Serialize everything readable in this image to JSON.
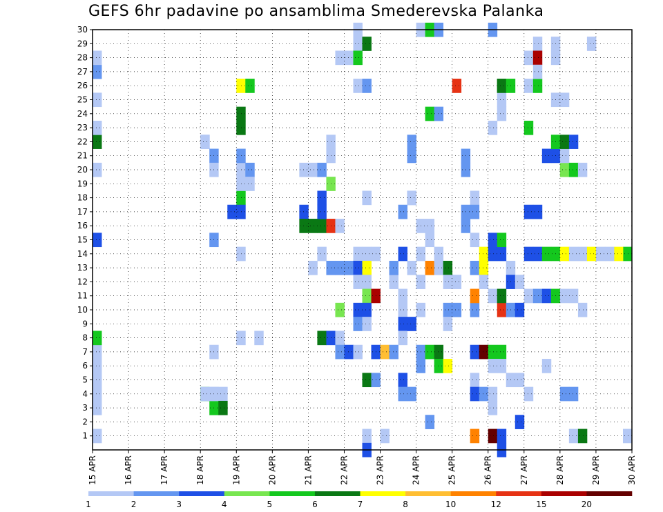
{
  "chart_data": {
    "type": "heatmap",
    "title": "GEFS 6hr padavine po ansamblima Smederevska Palanka",
    "x_tick_labels": [
      "15 APR",
      "16 APR",
      "17 APR",
      "18 APR",
      "19 APR",
      "20 APR",
      "21 APR",
      "22 APR",
      "23 APR",
      "24 APR",
      "25 APR",
      "26 APR",
      "27 APR",
      "28 APR",
      "29 APR",
      "30 APR"
    ],
    "y_tick_labels": [
      "1",
      "2",
      "3",
      "4",
      "5",
      "6",
      "7",
      "8",
      "9",
      "10",
      "11",
      "12",
      "13",
      "14",
      "15",
      "16",
      "17",
      "18",
      "19",
      "20",
      "21",
      "22",
      "23",
      "24",
      "25",
      "26",
      "27",
      "28",
      "29",
      "30"
    ],
    "x_steps_per_day": 4,
    "x_range_steps": [
      0,
      60
    ],
    "y_range": [
      0,
      30
    ],
    "grid": true,
    "legend_placement": "bottom",
    "colorbar": {
      "labels": [
        "1",
        "2",
        "3",
        "4",
        "5",
        "6",
        "7",
        "8",
        "10",
        "12",
        "15",
        "20"
      ],
      "colors": [
        "#b4c8f5",
        "#6496f0",
        "#1e50e6",
        "#78e650",
        "#14c81e",
        "#0a7814",
        "#ffff00",
        "#ffbe32",
        "#ff8200",
        "#e63214",
        "#aa0000",
        "#640000"
      ]
    },
    "cells": [
      [
        0,
        1,
        0
      ],
      [
        0,
        3,
        0
      ],
      [
        0,
        4,
        0
      ],
      [
        0,
        5,
        0
      ],
      [
        0,
        6,
        0
      ],
      [
        0,
        7,
        0
      ],
      [
        0,
        8,
        4
      ],
      [
        0,
        15,
        2
      ],
      [
        0,
        20,
        0
      ],
      [
        0,
        22,
        5
      ],
      [
        0,
        23,
        0
      ],
      [
        0,
        25,
        0
      ],
      [
        0,
        27,
        1
      ],
      [
        0,
        28,
        0
      ],
      [
        12,
        4,
        4
      ],
      [
        12,
        22,
        0
      ],
      [
        12,
        4,
        0
      ],
      [
        13,
        4,
        0
      ],
      [
        13,
        3,
        4
      ],
      [
        13,
        4,
        0
      ],
      [
        12,
        22,
        0
      ],
      [
        13,
        7,
        0
      ],
      [
        13,
        21,
        1
      ],
      [
        13,
        20,
        0
      ],
      [
        13,
        15,
        1
      ],
      [
        14,
        4,
        0
      ],
      [
        14,
        3,
        5
      ],
      [
        15,
        17,
        2
      ],
      [
        16,
        18,
        4
      ],
      [
        16,
        17,
        2
      ],
      [
        16,
        20,
        0
      ],
      [
        16,
        19,
        0
      ],
      [
        16,
        21,
        1
      ],
      [
        16,
        23,
        5
      ],
      [
        16,
        24,
        5
      ],
      [
        16,
        26,
        6
      ],
      [
        16,
        14,
        0
      ],
      [
        16,
        8,
        0
      ],
      [
        17,
        26,
        4
      ],
      [
        17,
        20,
        1
      ],
      [
        17,
        19,
        0
      ],
      [
        18,
        8,
        0
      ],
      [
        23,
        20,
        0
      ],
      [
        23,
        17,
        2
      ],
      [
        23,
        16,
        5
      ],
      [
        24,
        20,
        0
      ],
      [
        24,
        16,
        5
      ],
      [
        24,
        13,
        0
      ],
      [
        25,
        20,
        1
      ],
      [
        25,
        18,
        2
      ],
      [
        25,
        16,
        5
      ],
      [
        25,
        17,
        2
      ],
      [
        25,
        14,
        0
      ],
      [
        25,
        8,
        5
      ],
      [
        26,
        19,
        3
      ],
      [
        26,
        16,
        9
      ],
      [
        26,
        13,
        1
      ],
      [
        26,
        8,
        2
      ],
      [
        26,
        21,
        0
      ],
      [
        26,
        22,
        0
      ],
      [
        27,
        16,
        0
      ],
      [
        27,
        13,
        1
      ],
      [
        27,
        10,
        3
      ],
      [
        27,
        8,
        0
      ],
      [
        27,
        7,
        1
      ],
      [
        27,
        28,
        0
      ],
      [
        28,
        13,
        1
      ],
      [
        28,
        28,
        0
      ],
      [
        28,
        7,
        2
      ],
      [
        29,
        14,
        0
      ],
      [
        29,
        13,
        2
      ],
      [
        29,
        12,
        0
      ],
      [
        29,
        10,
        2
      ],
      [
        29,
        9,
        1
      ],
      [
        29,
        7,
        0
      ],
      [
        29,
        30,
        0
      ],
      [
        29,
        26,
        0
      ],
      [
        29,
        29,
        0
      ],
      [
        29,
        28,
        4
      ],
      [
        30,
        29,
        5
      ],
      [
        30,
        14,
        0
      ],
      [
        30,
        13,
        6
      ],
      [
        30,
        12,
        0
      ],
      [
        30,
        11,
        3
      ],
      [
        30,
        10,
        2
      ],
      [
        30,
        9,
        0
      ],
      [
        30,
        5,
        5
      ],
      [
        30,
        1,
        0
      ],
      [
        30,
        0,
        2
      ],
      [
        30,
        26,
        1
      ],
      [
        30,
        18,
        0
      ],
      [
        31,
        14,
        0
      ],
      [
        31,
        11,
        10
      ],
      [
        31,
        5,
        1
      ],
      [
        31,
        7,
        2
      ],
      [
        32,
        7,
        7
      ],
      [
        32,
        1,
        0
      ],
      [
        33,
        7,
        1
      ],
      [
        33,
        12,
        0
      ],
      [
        33,
        13,
        1
      ],
      [
        34,
        17,
        1
      ],
      [
        34,
        14,
        2
      ],
      [
        34,
        10,
        0
      ],
      [
        34,
        9,
        2
      ],
      [
        34,
        11,
        0
      ],
      [
        34,
        8,
        0
      ],
      [
        34,
        5,
        2
      ],
      [
        34,
        4,
        1
      ],
      [
        35,
        21,
        1
      ],
      [
        35,
        22,
        1
      ],
      [
        35,
        18,
        1
      ],
      [
        35,
        13,
        0
      ],
      [
        35,
        9,
        2
      ],
      [
        35,
        4,
        1
      ],
      [
        35,
        18,
        0
      ],
      [
        36,
        14,
        0
      ],
      [
        36,
        12,
        0
      ],
      [
        36,
        10,
        0
      ],
      [
        36,
        7,
        1
      ],
      [
        36,
        6,
        1
      ],
      [
        36,
        16,
        0
      ],
      [
        36,
        30,
        0
      ],
      [
        37,
        13,
        8
      ],
      [
        37,
        7,
        4
      ],
      [
        37,
        24,
        4
      ],
      [
        37,
        30,
        4
      ],
      [
        37,
        2,
        1
      ],
      [
        37,
        15,
        0
      ],
      [
        37,
        16,
        0
      ],
      [
        38,
        14,
        0
      ],
      [
        38,
        13,
        0
      ],
      [
        38,
        7,
        5
      ],
      [
        38,
        6,
        4
      ],
      [
        38,
        30,
        1
      ],
      [
        38,
        24,
        1
      ],
      [
        39,
        13,
        5
      ],
      [
        39,
        12,
        0
      ],
      [
        39,
        10,
        1
      ],
      [
        39,
        6,
        6
      ],
      [
        39,
        9,
        0
      ],
      [
        40,
        12,
        0
      ],
      [
        40,
        10,
        1
      ],
      [
        40,
        26,
        9
      ],
      [
        41,
        17,
        1
      ],
      [
        41,
        16,
        1
      ],
      [
        41,
        20,
        1
      ],
      [
        41,
        21,
        1
      ],
      [
        42,
        13,
        1
      ],
      [
        42,
        10,
        1
      ],
      [
        42,
        18,
        0
      ],
      [
        42,
        17,
        1
      ],
      [
        42,
        15,
        0
      ],
      [
        42,
        11,
        8
      ],
      [
        42,
        7,
        2
      ],
      [
        42,
        5,
        0
      ],
      [
        42,
        4,
        2
      ],
      [
        42,
        1,
        8
      ],
      [
        43,
        13,
        6
      ],
      [
        43,
        14,
        6
      ],
      [
        43,
        4,
        1
      ],
      [
        43,
        7,
        11
      ],
      [
        43,
        12,
        0
      ],
      [
        44,
        14,
        2
      ],
      [
        44,
        11,
        0
      ],
      [
        44,
        7,
        4
      ],
      [
        44,
        6,
        0
      ],
      [
        44,
        4,
        0
      ],
      [
        44,
        3,
        0
      ],
      [
        44,
        1,
        11
      ],
      [
        44,
        23,
        0
      ],
      [
        44,
        30,
        1
      ],
      [
        44,
        15,
        2
      ],
      [
        45,
        14,
        2
      ],
      [
        45,
        11,
        0
      ],
      [
        45,
        7,
        4
      ],
      [
        45,
        26,
        5
      ],
      [
        45,
        0,
        2
      ],
      [
        45,
        1,
        2
      ],
      [
        45,
        15,
        4
      ],
      [
        45,
        24,
        0
      ],
      [
        45,
        25,
        0
      ],
      [
        45,
        26,
        5
      ],
      [
        45,
        6,
        0
      ],
      [
        45,
        10,
        9
      ],
      [
        45,
        11,
        5
      ],
      [
        46,
        10,
        1
      ],
      [
        46,
        13,
        0
      ],
      [
        46,
        12,
        2
      ],
      [
        46,
        5,
        0
      ],
      [
        46,
        26,
        4
      ],
      [
        47,
        12,
        0
      ],
      [
        47,
        10,
        2
      ],
      [
        47,
        5,
        0
      ],
      [
        47,
        2,
        2
      ],
      [
        48,
        11,
        0
      ],
      [
        48,
        4,
        0
      ],
      [
        48,
        23,
        4
      ],
      [
        48,
        26,
        0
      ],
      [
        48,
        28,
        0
      ],
      [
        48,
        14,
        2
      ],
      [
        48,
        17,
        2
      ],
      [
        49,
        14,
        2
      ],
      [
        49,
        17,
        2
      ],
      [
        49,
        11,
        1
      ],
      [
        49,
        26,
        4
      ],
      [
        49,
        29,
        0
      ],
      [
        49,
        28,
        10
      ],
      [
        49,
        27,
        0
      ],
      [
        50,
        14,
        4
      ],
      [
        50,
        11,
        2
      ],
      [
        50,
        6,
        0
      ],
      [
        50,
        21,
        2
      ],
      [
        51,
        14,
        4
      ],
      [
        51,
        11,
        4
      ],
      [
        51,
        21,
        2
      ],
      [
        51,
        22,
        4
      ],
      [
        51,
        25,
        0
      ],
      [
        51,
        28,
        0
      ],
      [
        51,
        29,
        0
      ],
      [
        52,
        14,
        6
      ],
      [
        52,
        11,
        0
      ],
      [
        52,
        20,
        3
      ],
      [
        52,
        21,
        0
      ],
      [
        52,
        22,
        5
      ],
      [
        52,
        25,
        0
      ],
      [
        52,
        4,
        1
      ],
      [
        53,
        14,
        0
      ],
      [
        53,
        11,
        0
      ],
      [
        53,
        20,
        4
      ],
      [
        53,
        22,
        2
      ],
      [
        53,
        1,
        0
      ],
      [
        53,
        4,
        1
      ],
      [
        54,
        20,
        0
      ],
      [
        54,
        14,
        0
      ],
      [
        54,
        1,
        5
      ],
      [
        54,
        10,
        0
      ],
      [
        55,
        14,
        6
      ],
      [
        55,
        29,
        0
      ],
      [
        59,
        14,
        4
      ],
      [
        59,
        1,
        0
      ],
      [
        58,
        14,
        6
      ],
      [
        57,
        14,
        0
      ],
      [
        56,
        14,
        0
      ]
    ]
  }
}
